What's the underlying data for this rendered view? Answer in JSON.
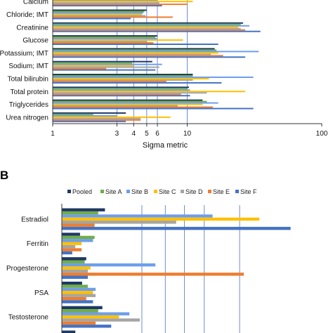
{
  "chart_data": [
    {
      "type": "bar",
      "orientation": "horizontal",
      "xscale": "log",
      "xlim": [
        1,
        100
      ],
      "xticks": [
        "1",
        "3",
        "4",
        "5",
        "6",
        "10",
        "100"
      ],
      "xlabel": "Sigma metric",
      "panel_label": "",
      "reference_lines": [
        3,
        4,
        5,
        6,
        10
      ],
      "categories": [
        "Calcium",
        "Chloride; IMT",
        "Creatinine",
        "Glucose",
        "Potassium; IMT",
        "Sodium; IMT",
        "Total bilirubin",
        "Total protein",
        "Triglycerides",
        "Urea nitrogen"
      ],
      "series": [
        {
          "color": "#1f3864",
          "values": [
            5.9,
            5.0,
            26.0,
            6.0,
            16.0,
            5.5,
            11.0,
            10.3,
            13.0,
            3.5
          ]
        },
        {
          "color": "#70ad47",
          "values": [
            7.0,
            4.8,
            25.0,
            5.8,
            16.5,
            3.9,
            11.0,
            10.0,
            14.0,
            2.0
          ]
        },
        {
          "color": "#6d9eeb",
          "values": [
            6.0,
            4.7,
            29.0,
            6.0,
            34.0,
            6.5,
            31.0,
            10.5,
            17.0,
            3.0
          ]
        },
        {
          "color": "#ffc000",
          "values": [
            11.0,
            4.6,
            24.0,
            9.3,
            17.0,
            4.0,
            14.5,
            27.0,
            13.0,
            7.5
          ]
        },
        {
          "color": "#a5a5a5",
          "values": [
            6.2,
            4.9,
            25.0,
            5.0,
            15.0,
            6.2,
            11.0,
            14.0,
            8.5,
            4.5
          ]
        },
        {
          "color": "#ed7d31",
          "values": [
            10.0,
            7.8,
            27.0,
            5.6,
            18.5,
            2.5,
            7.0,
            9.0,
            15.5,
            4.5
          ]
        },
        {
          "color": "#4472c4",
          "values": [
            6.5,
            3.8,
            35.0,
            17.0,
            27.0,
            5.8,
            18.0,
            10.5,
            31.0,
            3.5
          ]
        }
      ]
    },
    {
      "type": "bar",
      "orientation": "horizontal",
      "panel_label": "B",
      "legend_position": "top",
      "categories": [
        "Estradiol",
        "Ferritin",
        "Progesterone",
        "PSA",
        "Testosterone",
        ""
      ],
      "series": [
        {
          "name": "Pooled",
          "color": "#1f3864",
          "values": [
            8.3,
            3.5,
            4.7,
            3.9,
            7.8,
            2.6
          ]
        },
        {
          "name": "Site A",
          "color": "#70ad47",
          "values": [
            7.0,
            6.3,
            4.4,
            5.0,
            7.0,
            9.2
          ]
        },
        {
          "name": "Site B",
          "color": "#6d9eeb",
          "values": [
            29.0,
            6.0,
            18.0,
            6.5,
            13.0,
            0
          ]
        },
        {
          "name": "Site C",
          "color": "#ffc000",
          "values": [
            38.0,
            3.8,
            5.5,
            6.0,
            11.0,
            0
          ]
        },
        {
          "name": "Site D",
          "color": "#a5a5a5",
          "values": [
            22.0,
            2.6,
            5.0,
            6.5,
            15.0,
            0
          ]
        },
        {
          "name": "Site E",
          "color": "#ed7d31",
          "values": [
            6.3,
            3.8,
            35.0,
            4.7,
            6.5,
            0
          ]
        },
        {
          "name": "Site F",
          "color": "#4472c4",
          "values": [
            44.0,
            2.0,
            5.0,
            6.0,
            9.5,
            0
          ]
        }
      ]
    }
  ]
}
